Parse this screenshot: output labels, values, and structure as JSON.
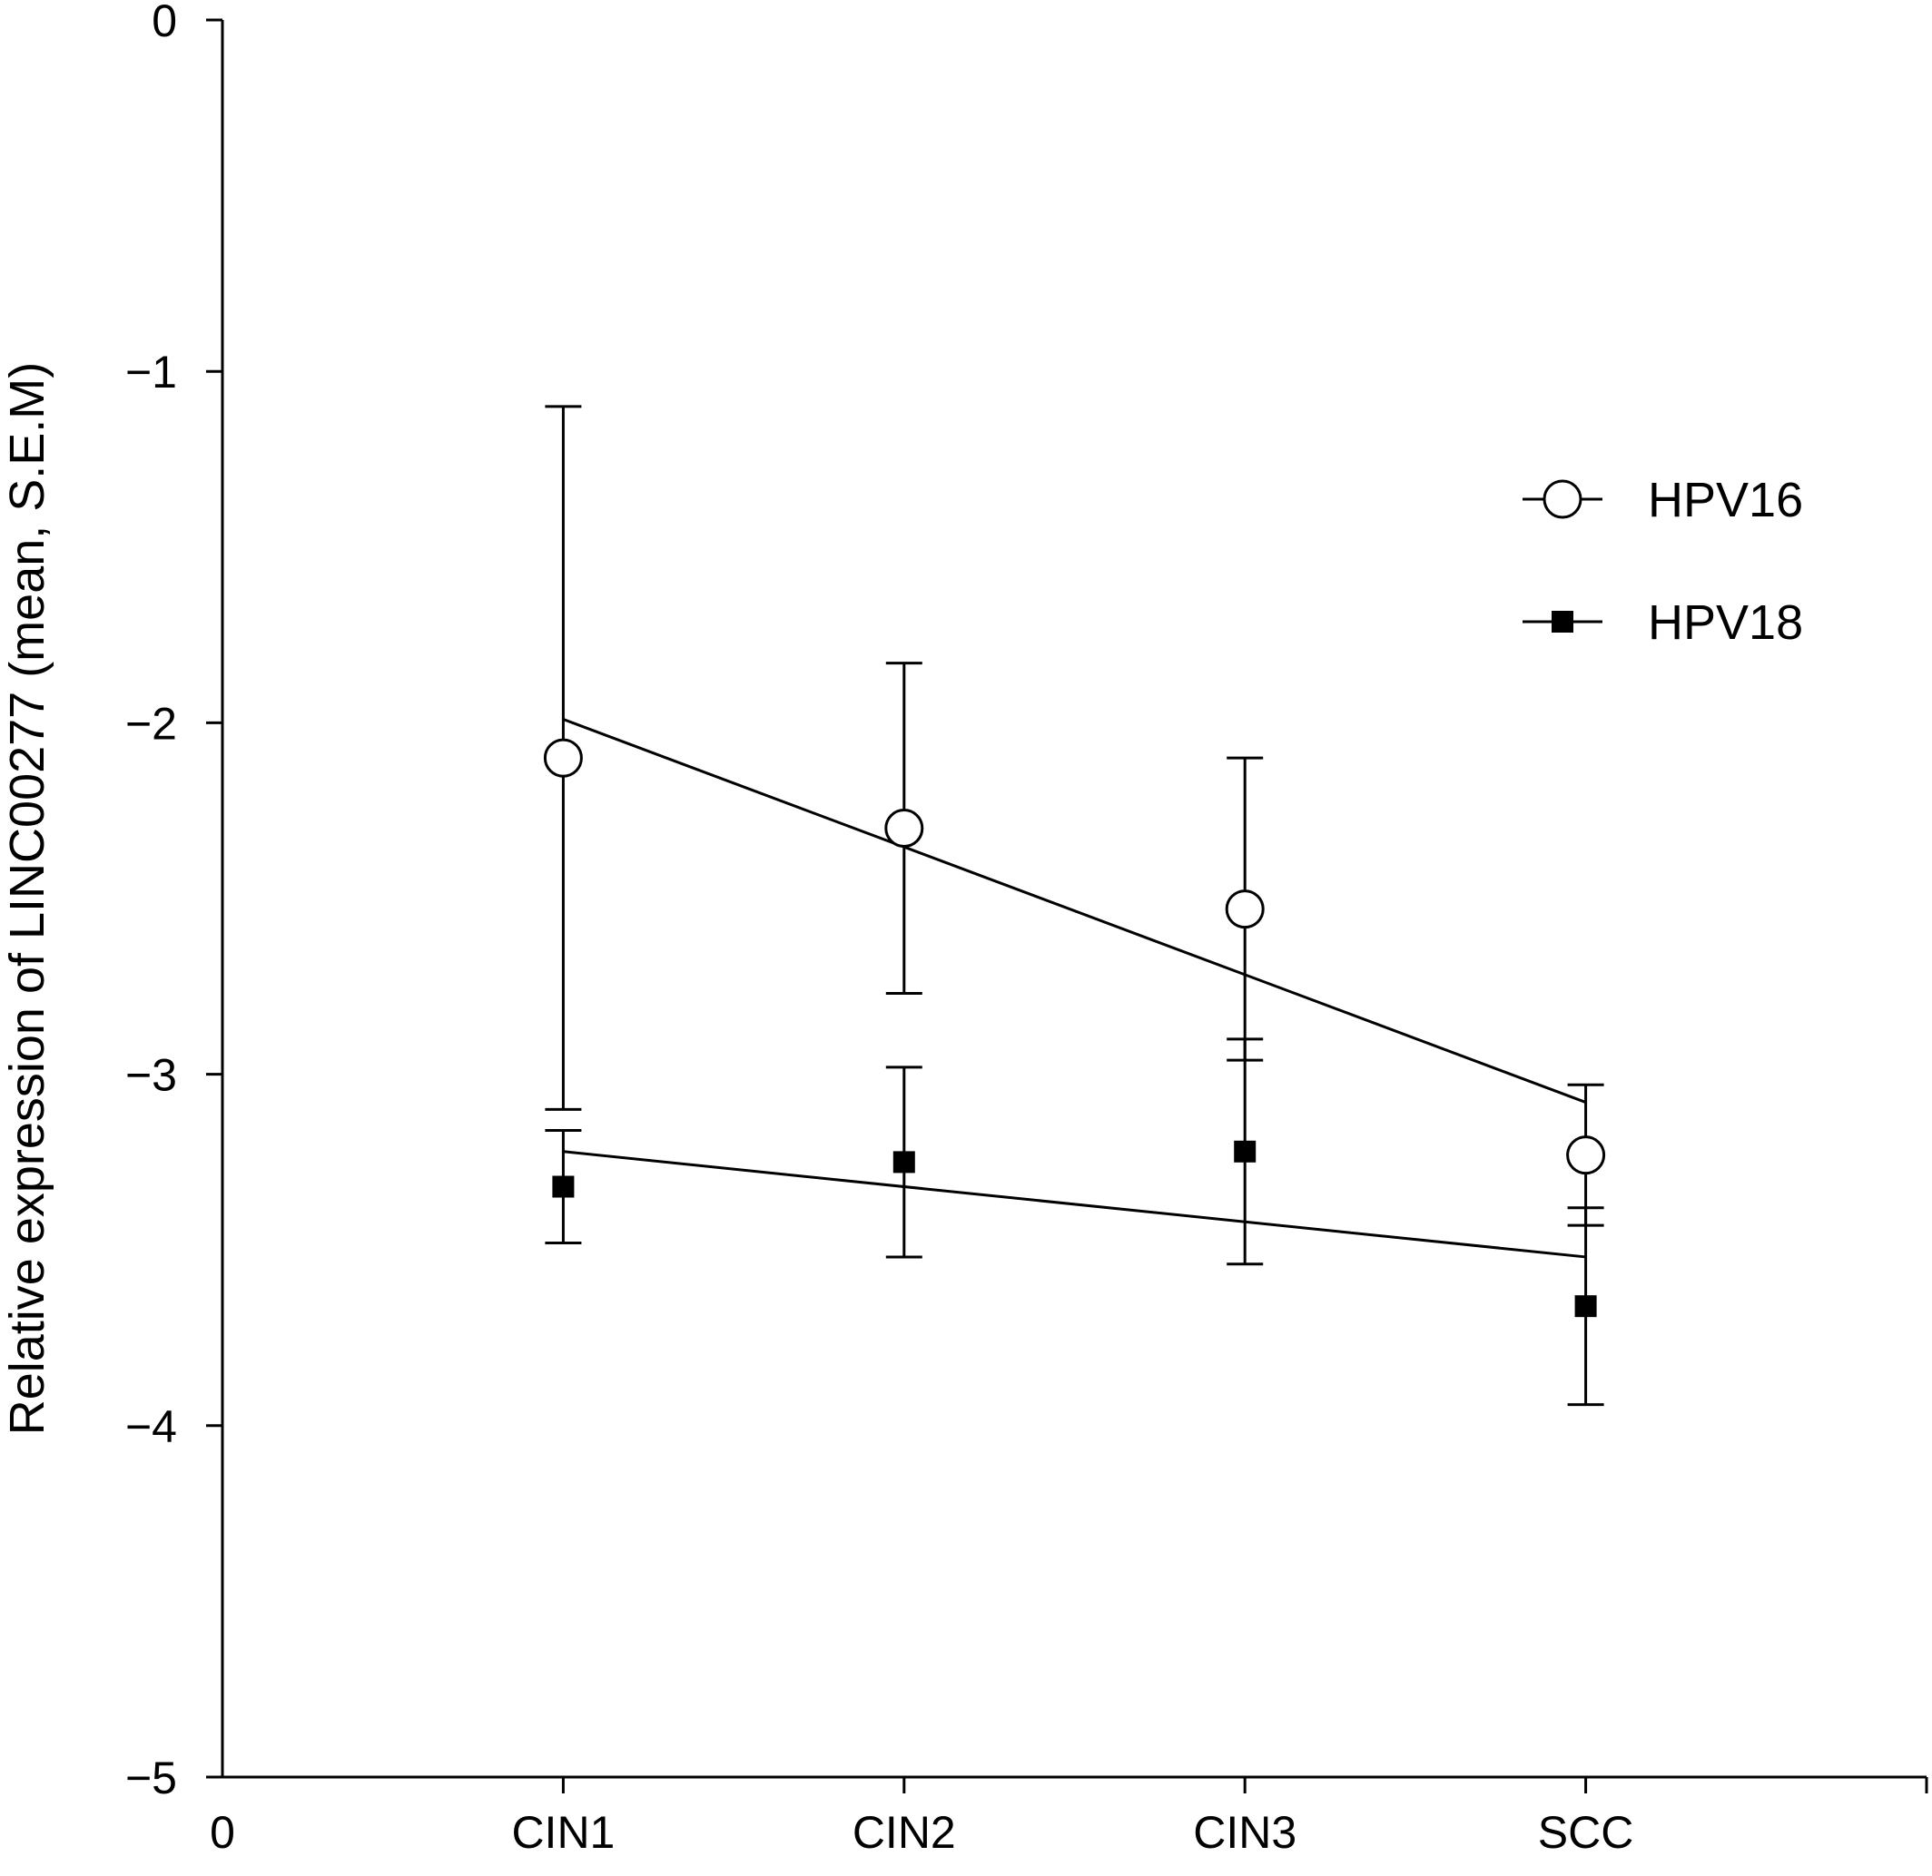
{
  "chart_data": {
    "type": "line",
    "title": "",
    "xlabel": "",
    "ylabel": "Relative expression of LINC00277 (mean, S.E.M)",
    "categories": [
      "CIN1",
      "CIN2",
      "CIN3",
      "SCC"
    ],
    "x_origin_label": "0",
    "xlim": [
      0,
      5
    ],
    "ylim": [
      -5,
      0
    ],
    "y_ticks": [
      0,
      -1,
      -2,
      -3,
      -4,
      -5
    ],
    "y_tick_labels": [
      "0",
      "−1",
      "−2",
      "−3",
      "−4",
      "−5"
    ],
    "grid": false,
    "legend_position": "top-right",
    "series": [
      {
        "name": "HPV16",
        "marker": "open-circle",
        "values": [
          -2.1,
          -2.3,
          -2.53,
          -3.23
        ],
        "errors": [
          1.0,
          0.47,
          0.43,
          0.2
        ],
        "trendline": [
          -1.99,
          -3.08
        ]
      },
      {
        "name": "HPV18",
        "marker": "filled-square",
        "values": [
          -3.32,
          -3.25,
          -3.22,
          -3.66
        ],
        "errors": [
          0.16,
          0.27,
          0.32,
          0.28
        ],
        "trendline": [
          -3.22,
          -3.52
        ]
      }
    ]
  },
  "colors": {
    "line": "#000000",
    "background": "#ffffff"
  }
}
